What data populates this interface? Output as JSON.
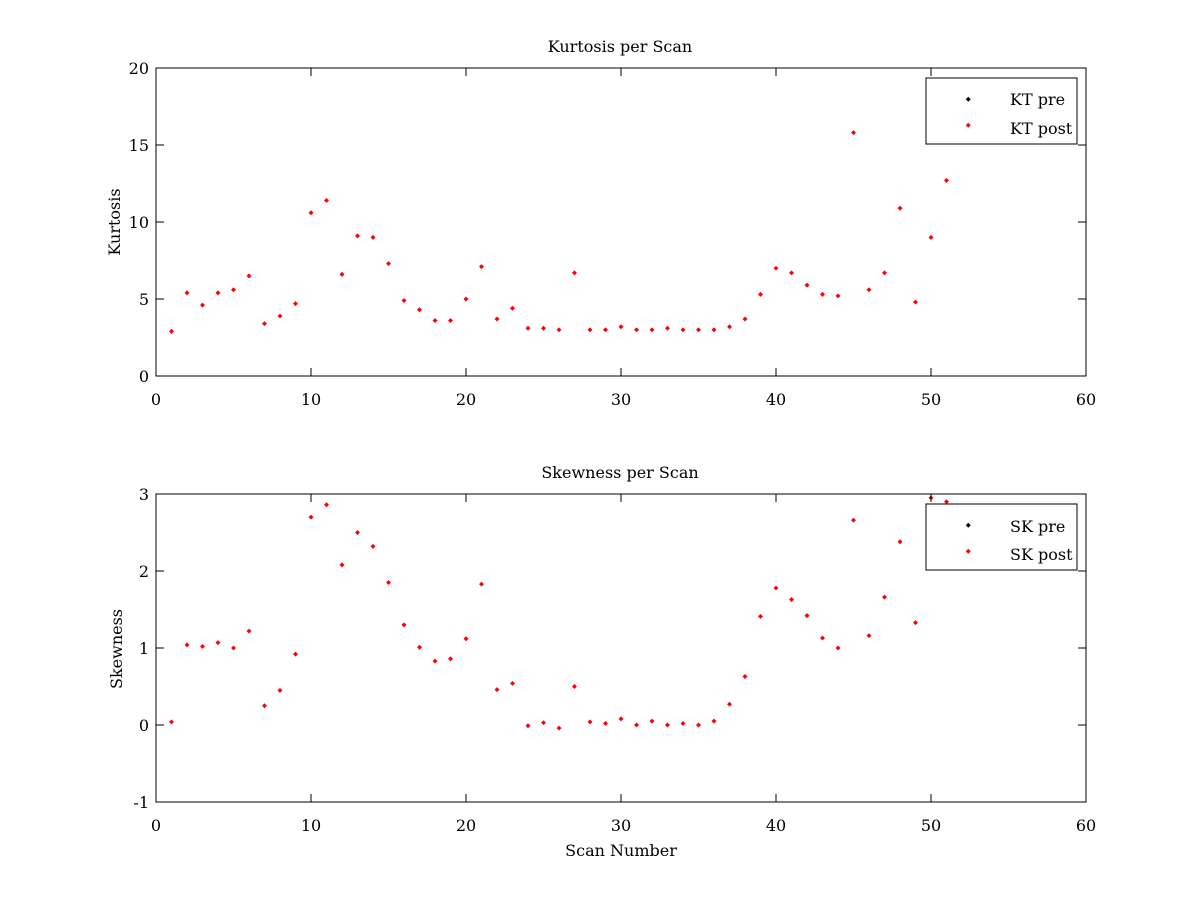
{
  "chart_data": [
    {
      "type": "scatter",
      "title": "Kurtosis per Scan",
      "xlabel": "",
      "ylabel": "Kurtosis",
      "xlim": [
        0,
        60
      ],
      "ylim": [
        0,
        20
      ],
      "xticks": [
        0,
        10,
        20,
        30,
        40,
        50,
        60
      ],
      "yticks": [
        0,
        5,
        10,
        15,
        20
      ],
      "grid": false,
      "legend_position": "top-right",
      "series": [
        {
          "name": "KT pre",
          "color": "#000000",
          "x": [],
          "y": []
        },
        {
          "name": "KT post",
          "color": "#ff0000",
          "x": [
            1,
            2,
            3,
            4,
            5,
            6,
            7,
            8,
            9,
            10,
            11,
            12,
            13,
            14,
            15,
            16,
            17,
            18,
            19,
            20,
            21,
            22,
            23,
            24,
            25,
            26,
            27,
            28,
            29,
            30,
            31,
            32,
            33,
            34,
            35,
            36,
            37,
            38,
            39,
            40,
            41,
            42,
            43,
            44,
            45,
            46,
            47,
            48,
            49,
            50,
            51
          ],
          "y": [
            2.9,
            5.4,
            4.6,
            5.4,
            5.6,
            6.5,
            3.4,
            3.9,
            4.7,
            10.6,
            11.4,
            6.6,
            9.1,
            9.0,
            7.3,
            4.9,
            4.3,
            3.6,
            3.6,
            5.0,
            7.1,
            3.7,
            4.4,
            3.1,
            3.1,
            3.0,
            6.7,
            3.0,
            3.0,
            3.2,
            3.0,
            3.0,
            3.1,
            3.0,
            3.0,
            3.0,
            3.2,
            3.7,
            5.3,
            7.0,
            6.7,
            5.9,
            5.3,
            5.2,
            15.8,
            5.6,
            6.7,
            10.9,
            4.8,
            9.0,
            12.7
          ]
        }
      ]
    },
    {
      "type": "scatter",
      "title": "Skewness per Scan",
      "xlabel": "Scan Number",
      "ylabel": "Skewness",
      "xlim": [
        0,
        60
      ],
      "ylim": [
        -1,
        3
      ],
      "xticks": [
        0,
        10,
        20,
        30,
        40,
        50,
        60
      ],
      "yticks": [
        -1,
        0,
        1,
        2,
        3
      ],
      "grid": false,
      "legend_position": "top-right",
      "series": [
        {
          "name": "SK pre",
          "color": "#000000",
          "x": [],
          "y": []
        },
        {
          "name": "SK post",
          "color": "#ff0000",
          "x": [
            1,
            2,
            3,
            4,
            5,
            6,
            7,
            8,
            9,
            10,
            11,
            12,
            13,
            14,
            15,
            16,
            17,
            18,
            19,
            20,
            21,
            22,
            23,
            24,
            25,
            26,
            27,
            28,
            29,
            30,
            31,
            32,
            33,
            34,
            35,
            36,
            37,
            38,
            39,
            40,
            41,
            42,
            43,
            44,
            45,
            46,
            47,
            48,
            49,
            50,
            51
          ],
          "y": [
            0.04,
            1.04,
            1.02,
            1.07,
            1.0,
            1.22,
            0.25,
            0.45,
            0.92,
            2.7,
            2.86,
            2.08,
            2.5,
            2.32,
            1.85,
            1.3,
            1.01,
            0.83,
            0.86,
            1.12,
            1.83,
            0.46,
            0.54,
            -0.01,
            0.03,
            -0.04,
            0.5,
            0.04,
            0.02,
            0.08,
            0.0,
            0.05,
            0.0,
            0.02,
            0.0,
            0.05,
            0.27,
            0.63,
            1.41,
            1.78,
            1.63,
            1.42,
            1.13,
            1.0,
            2.66,
            1.16,
            1.66,
            2.38,
            1.33,
            2.95,
            2.9
          ]
        }
      ]
    }
  ]
}
